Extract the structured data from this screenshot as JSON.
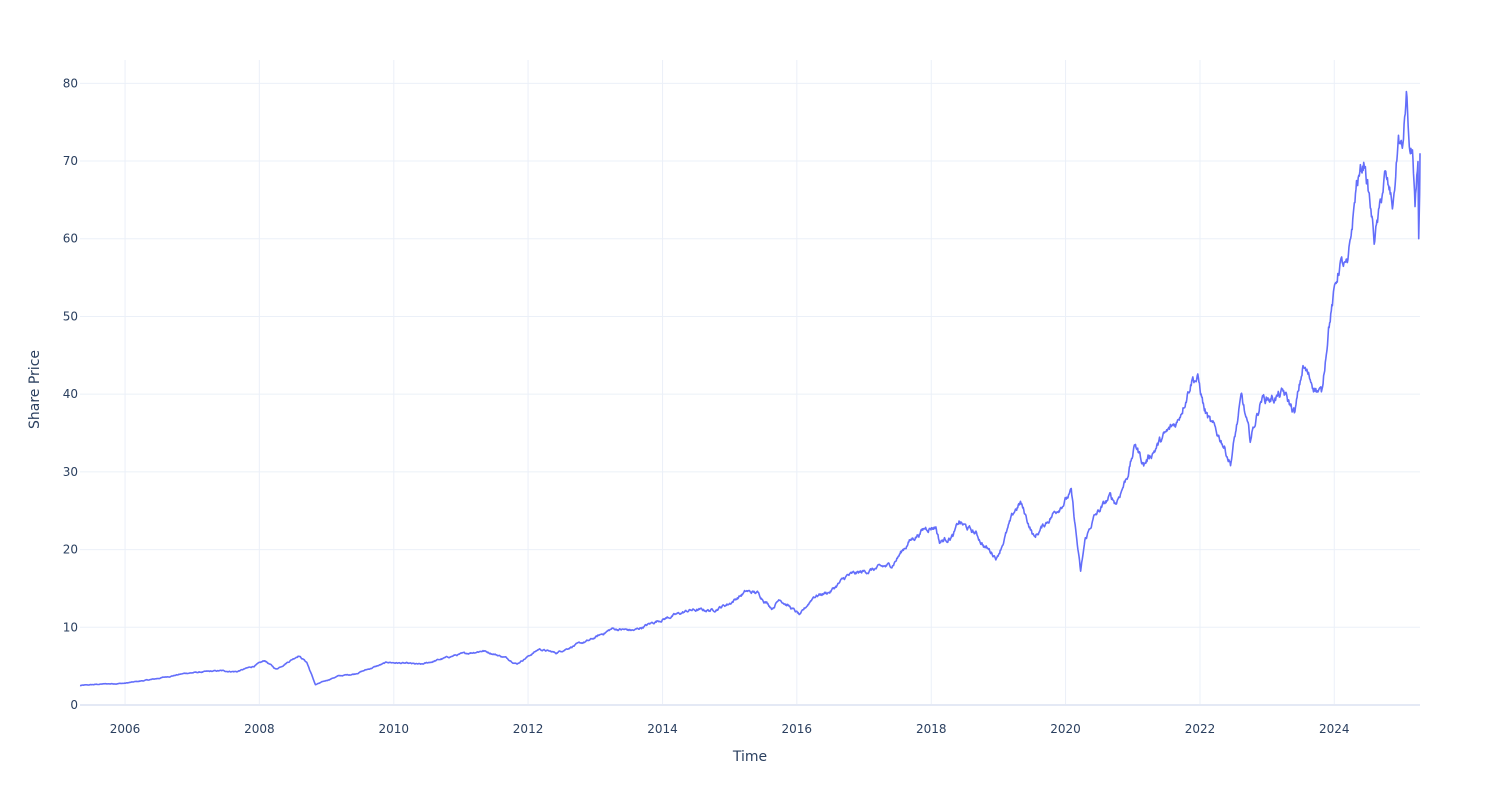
{
  "chart_data": {
    "type": "line",
    "title": "",
    "xlabel": "Time",
    "ylabel": "Share Price",
    "xlim": [
      "2005-05-01",
      "2025-04-11"
    ],
    "ylim": [
      0,
      83
    ],
    "grid": true,
    "legend": "none",
    "x_ticks": [
      "2006",
      "2008",
      "2010",
      "2012",
      "2014",
      "2016",
      "2018",
      "2020",
      "2022",
      "2024"
    ],
    "y_ticks": [
      0,
      10,
      20,
      30,
      40,
      50,
      60,
      70,
      80
    ],
    "series": [
      {
        "color": "#636efa",
        "x": [
          "2005-05-01",
          "2005-09-01",
          "2006-01-01",
          "2006-06-01",
          "2006-12-01",
          "2007-06-01",
          "2007-09-01",
          "2007-12-01",
          "2008-02-01",
          "2008-04-01",
          "2008-08-01",
          "2008-09-15",
          "2008-11-01",
          "2009-03-01",
          "2009-06-01",
          "2009-12-01",
          "2010-06-01",
          "2010-12-01",
          "2011-05-01",
          "2011-09-01",
          "2011-11-01",
          "2012-03-01",
          "2012-06-01",
          "2012-09-01",
          "2012-12-01",
          "2013-04-01",
          "2013-08-01",
          "2013-12-01",
          "2014-06-01",
          "2014-10-01",
          "2015-01-01",
          "2015-04-01",
          "2015-06-01",
          "2015-08-20",
          "2015-10-01",
          "2016-01-20",
          "2016-04-01",
          "2016-07-01",
          "2016-10-01",
          "2017-03-01",
          "2017-06-01",
          "2017-09-01",
          "2017-12-01",
          "2018-01-26",
          "2018-02-15",
          "2018-05-01",
          "2018-06-01",
          "2018-09-01",
          "2018-10-15",
          "2018-12-24",
          "2019-04-01",
          "2019-05-01",
          "2019-07-15",
          "2019-08-15",
          "2019-11-01",
          "2020-02-01",
          "2020-03-23",
          "2020-04-15",
          "2020-06-01",
          "2020-09-01",
          "2020-10-01",
          "2020-12-01",
          "2021-01-15",
          "2021-03-01",
          "2021-06-01",
          "2021-09-01",
          "2021-11-20",
          "2021-12-20",
          "2022-01-25",
          "2022-03-01",
          "2022-05-01",
          "2022-06-16",
          "2022-08-15",
          "2022-10-01",
          "2022-12-01",
          "2023-02-01",
          "2023-04-01",
          "2023-06-01",
          "2023-07-15",
          "2023-09-01",
          "2023-10-26",
          "2023-12-01",
          "2024-02-01",
          "2024-03-15",
          "2024-05-01",
          "2024-06-15",
          "2024-08-05",
          "2024-09-01",
          "2024-10-01",
          "2024-11-15",
          "2024-12-15",
          "2025-01-05",
          "2025-01-27",
          "2025-02-15",
          "2025-03-01",
          "2025-03-15",
          "2025-03-31",
          "2025-04-04",
          "2025-04-09",
          "2025-04-11"
        ],
        "y": [
          2.5,
          2.7,
          2.8,
          3.3,
          4.1,
          4.4,
          4.3,
          5.0,
          5.7,
          4.6,
          6.4,
          5.5,
          2.6,
          3.7,
          4.0,
          5.5,
          5.2,
          6.4,
          7.0,
          6.1,
          5.3,
          7.2,
          6.7,
          7.6,
          8.3,
          9.8,
          9.6,
          10.8,
          12.2,
          12.2,
          13.1,
          14.6,
          14.4,
          12.5,
          13.7,
          11.5,
          14.0,
          14.6,
          16.6,
          17.5,
          18.0,
          21.0,
          22.8,
          23.0,
          21.0,
          21.8,
          23.5,
          22.0,
          20.5,
          19.0,
          25.0,
          26.0,
          21.5,
          22.5,
          24.8,
          27.3,
          17.0,
          21.0,
          24.0,
          26.8,
          26.0,
          29.5,
          33.5,
          31.0,
          34.0,
          36.5,
          42.3,
          42.0,
          38.0,
          36.0,
          34.0,
          31.2,
          39.5,
          34.0,
          39.5,
          39.5,
          40.0,
          37.5,
          43.5,
          41.5,
          40.0,
          49.0,
          57.0,
          56.0,
          67.0,
          70.0,
          60.0,
          63.0,
          68.0,
          64.0,
          73.0,
          71.0,
          78.5,
          70.5,
          71.5,
          63.0,
          69.0,
          59.5,
          66.0,
          71.0
        ]
      }
    ]
  }
}
